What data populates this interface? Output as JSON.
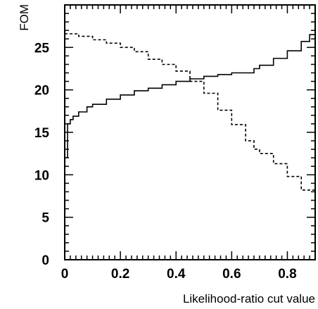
{
  "chart_data": {
    "type": "line",
    "title": "",
    "xlabel": "Likelihood-ratio cut value",
    "ylabel": "FOM",
    "xlim": [
      0,
      0.9
    ],
    "ylim": [
      0,
      30
    ],
    "x_ticks": [
      0,
      0.2,
      0.4,
      0.6,
      0.8
    ],
    "x_tick_labels": [
      "0",
      "0.2",
      "0.4",
      "0.6",
      "0.8"
    ],
    "y_ticks": [
      0,
      5,
      10,
      15,
      20,
      25
    ],
    "y_tick_labels": [
      "0",
      "5",
      "10",
      "15",
      "20",
      "25"
    ],
    "grid": false,
    "legend": "none",
    "series": [
      {
        "style": "solid",
        "color": "#000000",
        "x": [
          0,
          0.01,
          0.02,
          0.03,
          0.05,
          0.08,
          0.1,
          0.15,
          0.2,
          0.25,
          0.3,
          0.35,
          0.4,
          0.45,
          0.5,
          0.55,
          0.6,
          0.62,
          0.65,
          0.68,
          0.7,
          0.75,
          0.8,
          0.85,
          0.88,
          0.9
        ],
        "y": [
          12,
          16,
          16.5,
          16.9,
          17.4,
          18.0,
          18.3,
          18.9,
          19.4,
          19.9,
          20.2,
          20.6,
          21.0,
          21.3,
          21.6,
          21.8,
          22.0,
          22.0,
          22.0,
          22.5,
          22.9,
          23.7,
          24.6,
          25.7,
          26.5,
          27.0
        ]
      },
      {
        "style": "dashed",
        "color": "#000000",
        "x": [
          0,
          0.05,
          0.1,
          0.15,
          0.2,
          0.25,
          0.3,
          0.35,
          0.4,
          0.45,
          0.5,
          0.55,
          0.6,
          0.65,
          0.68,
          0.7,
          0.75,
          0.8,
          0.85,
          0.9
        ],
        "y": [
          26.6,
          26.3,
          25.9,
          25.5,
          25.0,
          24.5,
          23.6,
          23.0,
          22.2,
          21.0,
          19.6,
          17.6,
          15.9,
          14.0,
          13.0,
          12.5,
          11.3,
          9.8,
          8.2,
          7.0
        ]
      }
    ]
  }
}
